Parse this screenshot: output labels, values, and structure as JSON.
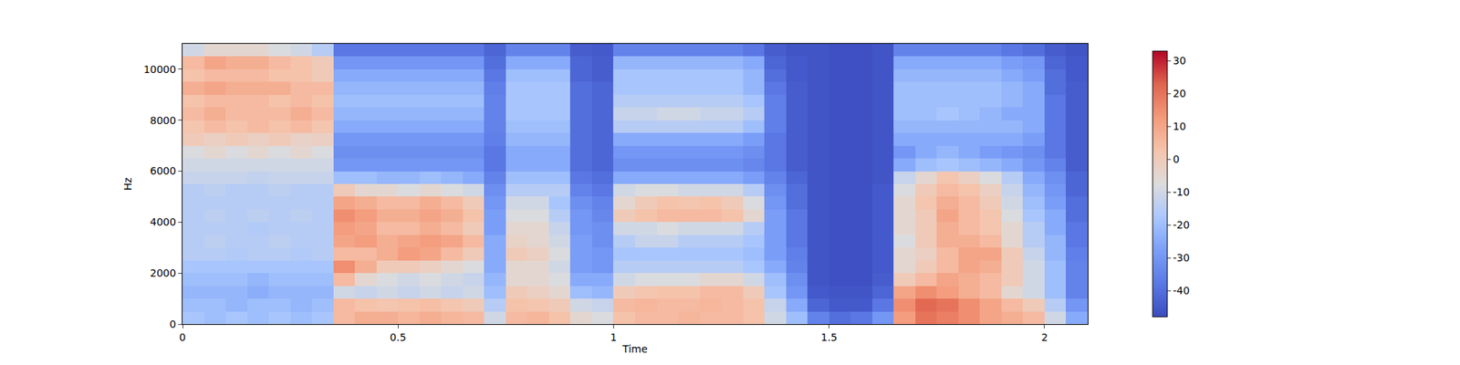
{
  "chart_data": {
    "type": "heatmap",
    "x_label": "Time",
    "y_label": "Hz",
    "x": [
      0,
      0.05,
      0.1,
      0.15,
      0.2,
      0.25,
      0.3,
      0.35,
      0.4,
      0.45,
      0.5,
      0.55,
      0.6,
      0.65,
      0.7,
      0.75,
      0.8,
      0.85,
      0.9,
      0.95,
      1,
      1.05,
      1.1,
      1.15,
      1.2,
      1.25,
      1.3,
      1.35,
      1.4,
      1.45,
      1.5,
      1.55,
      1.6,
      1.65,
      1.7,
      1.75,
      1.8,
      1.85,
      1.9,
      1.95,
      2,
      2.05,
      2.1
    ],
    "y": [
      0,
      500,
      1000,
      1500,
      2000,
      2500,
      3000,
      3500,
      4000,
      4500,
      5000,
      5500,
      6000,
      6500,
      7000,
      7500,
      8000,
      8500,
      9000,
      9500,
      10000,
      10500,
      11000
    ],
    "z": [
      [
        -18,
        -20,
        -18,
        -20,
        -18,
        -20,
        -18,
        5,
        8,
        8,
        6,
        8,
        6,
        5,
        -10,
        5,
        6,
        3,
        -5,
        -8,
        3,
        5,
        5,
        6,
        5,
        5,
        3,
        -10,
        -20,
        -35,
        -40,
        -38,
        -30,
        12,
        20,
        18,
        15,
        10,
        8,
        5,
        -10,
        -25
      ],
      [
        -20,
        -20,
        -22,
        -20,
        -20,
        -22,
        -20,
        5,
        3,
        2,
        3,
        4,
        2,
        0,
        -15,
        3,
        2,
        0,
        -10,
        -12,
        5,
        6,
        5,
        5,
        6,
        5,
        3,
        -12,
        -25,
        -42,
        -45,
        -45,
        -38,
        15,
        22,
        20,
        15,
        10,
        5,
        0,
        -15,
        -30
      ],
      [
        -22,
        -22,
        -22,
        -24,
        -22,
        -22,
        -22,
        -10,
        -12,
        -10,
        -12,
        -10,
        -12,
        -10,
        -20,
        0,
        -2,
        -5,
        -20,
        -22,
        0,
        2,
        3,
        3,
        5,
        5,
        0,
        -18,
        -30,
        -45,
        -46,
        -46,
        -42,
        10,
        15,
        12,
        8,
        5,
        -5,
        -10,
        -20,
        -35
      ],
      [
        -20,
        -20,
        -20,
        -22,
        -20,
        -20,
        -20,
        5,
        -5,
        -8,
        -10,
        -8,
        -10,
        -12,
        -22,
        -5,
        -5,
        -8,
        -25,
        -25,
        -10,
        -8,
        -8,
        -8,
        -5,
        -5,
        -10,
        -20,
        -32,
        -46,
        -47,
        -47,
        -44,
        0,
        5,
        10,
        8,
        5,
        0,
        -10,
        -20,
        -35
      ],
      [
        -18,
        -18,
        -18,
        -18,
        -18,
        -18,
        -18,
        15,
        8,
        0,
        0,
        -2,
        -5,
        -8,
        -25,
        -5,
        -5,
        -10,
        -28,
        -30,
        -15,
        -15,
        -15,
        -15,
        -15,
        -15,
        -18,
        -25,
        -35,
        -46,
        -47,
        -47,
        -45,
        -5,
        0,
        5,
        10,
        8,
        0,
        -10,
        -20,
        -35
      ],
      [
        -15,
        -15,
        -16,
        -15,
        -15,
        -16,
        -15,
        5,
        5,
        8,
        12,
        10,
        5,
        0,
        -25,
        0,
        -2,
        -8,
        -28,
        -30,
        -18,
        -18,
        -18,
        -18,
        -18,
        -18,
        -20,
        -28,
        -36,
        -46,
        -47,
        -47,
        -45,
        -5,
        -2,
        5,
        10,
        10,
        0,
        -12,
        -22,
        -36
      ],
      [
        -15,
        -14,
        -15,
        -15,
        -14,
        -15,
        -15,
        10,
        12,
        8,
        10,
        12,
        10,
        5,
        -25,
        -3,
        -5,
        -10,
        -28,
        -32,
        -15,
        -12,
        -12,
        -15,
        -15,
        -15,
        -18,
        -28,
        -38,
        -46,
        -47,
        -47,
        -45,
        -8,
        0,
        8,
        8,
        5,
        -5,
        -15,
        -22,
        -38
      ],
      [
        -15,
        -15,
        -15,
        -16,
        -15,
        -15,
        -15,
        12,
        10,
        5,
        5,
        8,
        5,
        0,
        -28,
        -5,
        -5,
        -12,
        -30,
        -32,
        -10,
        -10,
        -8,
        -10,
        -10,
        -10,
        -15,
        -28,
        -38,
        -46,
        -47,
        -47,
        -45,
        -5,
        0,
        8,
        5,
        2,
        -5,
        -15,
        -25,
        -38
      ],
      [
        -15,
        -14,
        -15,
        -14,
        -15,
        -14,
        -15,
        15,
        12,
        8,
        8,
        10,
        8,
        3,
        -28,
        -8,
        -8,
        -15,
        -30,
        -34,
        0,
        3,
        5,
        5,
        5,
        3,
        -5,
        -28,
        -38,
        -46,
        -47,
        -47,
        -45,
        -5,
        0,
        10,
        5,
        2,
        -8,
        -18,
        -25,
        -40
      ],
      [
        -15,
        -15,
        -15,
        -15,
        -15,
        -15,
        -15,
        10,
        8,
        5,
        5,
        8,
        5,
        0,
        -30,
        -10,
        -10,
        -18,
        -32,
        -35,
        -5,
        0,
        3,
        2,
        3,
        0,
        -8,
        -30,
        -40,
        -46,
        -47,
        -47,
        -45,
        -5,
        2,
        8,
        5,
        0,
        -10,
        -20,
        -28,
        -40
      ],
      [
        -15,
        -14,
        -15,
        -15,
        -14,
        -15,
        -15,
        0,
        -5,
        -5,
        -8,
        -5,
        -8,
        -10,
        -32,
        -15,
        -15,
        -15,
        -35,
        -38,
        -10,
        -8,
        -8,
        -10,
        -10,
        -10,
        -15,
        -32,
        -40,
        -46,
        -47,
        -47,
        -45,
        -8,
        0,
        5,
        3,
        -2,
        -12,
        -22,
        -30,
        -42
      ],
      [
        -12,
        -12,
        -12,
        -13,
        -12,
        -12,
        -12,
        -20,
        -20,
        -22,
        -22,
        -20,
        -22,
        -25,
        -35,
        -20,
        -20,
        -20,
        -38,
        -40,
        -25,
        -25,
        -25,
        -25,
        -25,
        -25,
        -28,
        -35,
        -42,
        -46,
        -47,
        -47,
        -46,
        -12,
        -5,
        2,
        -2,
        -8,
        -15,
        -25,
        -32,
        -42
      ],
      [
        -10,
        -10,
        -10,
        -10,
        -10,
        -10,
        -10,
        -30,
        -30,
        -30,
        -30,
        -30,
        -30,
        -30,
        -38,
        -25,
        -25,
        -25,
        -40,
        -42,
        -32,
        -32,
        -32,
        -32,
        -32,
        -32,
        -34,
        -38,
        -44,
        -46,
        -47,
        -47,
        -46,
        -25,
        -20,
        -18,
        -20,
        -22,
        -25,
        -30,
        -35,
        -44
      ],
      [
        -8,
        -5,
        -8,
        -5,
        -8,
        -5,
        -8,
        -32,
        -32,
        -32,
        -32,
        -32,
        -32,
        -32,
        -38,
        -25,
        -25,
        -25,
        -40,
        -42,
        -30,
        -30,
        -30,
        -30,
        -30,
        -30,
        -32,
        -38,
        -44,
        -46,
        -47,
        -47,
        -46,
        -30,
        -25,
        -22,
        -25,
        -28,
        -30,
        -32,
        -38,
        -44
      ],
      [
        0,
        -2,
        0,
        -2,
        0,
        -3,
        -2,
        -30,
        -30,
        -30,
        -30,
        -30,
        -30,
        -30,
        -36,
        -22,
        -22,
        -22,
        -40,
        -42,
        -25,
        -25,
        -25,
        -25,
        -25,
        -25,
        -28,
        -38,
        -44,
        -46,
        -47,
        -47,
        -46,
        -25,
        -25,
        -25,
        -25,
        -25,
        -25,
        -28,
        -38,
        -44
      ],
      [
        2,
        5,
        3,
        5,
        3,
        5,
        2,
        -25,
        -25,
        -25,
        -25,
        -25,
        -25,
        -25,
        -35,
        -20,
        -20,
        -20,
        -40,
        -42,
        -15,
        -15,
        -15,
        -15,
        -15,
        -15,
        -20,
        -36,
        -44,
        -46,
        -47,
        -47,
        -46,
        -22,
        -22,
        -22,
        -22,
        -22,
        -22,
        -25,
        -38,
        -44
      ],
      [
        5,
        8,
        5,
        5,
        5,
        8,
        5,
        -22,
        -22,
        -22,
        -22,
        -22,
        -22,
        -22,
        -35,
        -18,
        -18,
        -18,
        -40,
        -42,
        -12,
        -12,
        -10,
        -10,
        -12,
        -12,
        -15,
        -36,
        -44,
        -46,
        -47,
        -47,
        -46,
        -20,
        -20,
        -18,
        -20,
        -22,
        -25,
        -25,
        -38,
        -44
      ],
      [
        3,
        5,
        5,
        5,
        3,
        5,
        3,
        -20,
        -20,
        -20,
        -20,
        -20,
        -20,
        -20,
        -35,
        -18,
        -18,
        -18,
        -40,
        -42,
        -15,
        -15,
        -15,
        -15,
        -15,
        -15,
        -18,
        -36,
        -44,
        -46,
        -47,
        -47,
        -46,
        -20,
        -20,
        -20,
        -20,
        -20,
        -22,
        -25,
        -38,
        -44
      ],
      [
        8,
        10,
        8,
        8,
        8,
        5,
        5,
        -22,
        -22,
        -22,
        -22,
        -22,
        -22,
        -22,
        -36,
        -18,
        -18,
        -18,
        -40,
        -42,
        -18,
        -18,
        -18,
        -18,
        -18,
        -18,
        -22,
        -38,
        -44,
        -46,
        -47,
        -47,
        -46,
        -20,
        -20,
        -20,
        -20,
        -20,
        -22,
        -25,
        -40,
        -44
      ],
      [
        3,
        5,
        5,
        5,
        3,
        3,
        0,
        -25,
        -25,
        -25,
        -25,
        -25,
        -25,
        -25,
        -38,
        -20,
        -20,
        -20,
        -42,
        -44,
        -18,
        -18,
        -18,
        -18,
        -18,
        -18,
        -22,
        -40,
        -45,
        -46,
        -47,
        -47,
        -46,
        -22,
        -22,
        -22,
        -22,
        -22,
        -25,
        -28,
        -40,
        -45
      ],
      [
        5,
        10,
        8,
        8,
        5,
        3,
        0,
        -30,
        -30,
        -30,
        -30,
        -30,
        -30,
        -30,
        -40,
        -25,
        -25,
        -25,
        -42,
        -44,
        -22,
        -22,
        -22,
        -22,
        -22,
        -22,
        -25,
        -42,
        -45,
        -46,
        -47,
        -47,
        -46,
        -25,
        -25,
        -25,
        -25,
        -25,
        -28,
        -30,
        -42,
        -45
      ],
      [
        -10,
        -5,
        -5,
        -5,
        -8,
        -10,
        -15,
        -38,
        -38,
        -38,
        -38,
        -38,
        -38,
        -38,
        -42,
        -35,
        -35,
        -35,
        -44,
        -45,
        -35,
        -35,
        -35,
        -35,
        -35,
        -35,
        -38,
        -44,
        -46,
        -46,
        -47,
        -47,
        -46,
        -35,
        -35,
        -35,
        -35,
        -35,
        -38,
        -40,
        -44,
        -46
      ]
    ],
    "xlim": [
      0,
      2.1
    ],
    "ylim": [
      0,
      11000
    ],
    "xticks": [
      0,
      0.5,
      1,
      1.5,
      2
    ],
    "yticks": [
      0,
      2000,
      4000,
      6000,
      8000,
      10000
    ],
    "colorbar_range": [
      -48,
      33
    ],
    "colorbar_ticks": [
      -40,
      -30,
      -20,
      -10,
      0,
      10,
      20,
      30
    ]
  }
}
